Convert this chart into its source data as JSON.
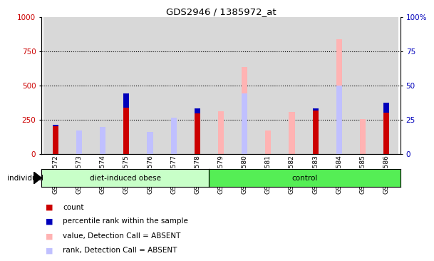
{
  "title": "GDS2946 / 1385972_at",
  "samples": [
    "GSM215572",
    "GSM215573",
    "GSM215574",
    "GSM215575",
    "GSM215576",
    "GSM215577",
    "GSM215578",
    "GSM215579",
    "GSM215580",
    "GSM215581",
    "GSM215582",
    "GSM215583",
    "GSM215584",
    "GSM215585",
    "GSM215586"
  ],
  "count": [
    200,
    0,
    0,
    440,
    0,
    0,
    335,
    0,
    0,
    0,
    0,
    315,
    0,
    0,
    375
  ],
  "percentile_rank": [
    215,
    0,
    0,
    340,
    0,
    0,
    295,
    0,
    0,
    0,
    0,
    330,
    0,
    0,
    300
  ],
  "value_absent": [
    0,
    155,
    185,
    0,
    90,
    250,
    0,
    310,
    635,
    170,
    305,
    0,
    840,
    255,
    0
  ],
  "rank_absent": [
    0,
    170,
    195,
    0,
    160,
    265,
    0,
    0,
    440,
    0,
    0,
    0,
    500,
    0,
    0
  ],
  "n_group1": 7,
  "n_group2": 8,
  "group_label1": "diet-induced obese",
  "group_label2": "control",
  "left_ylim": [
    0,
    1000
  ],
  "right_ylim": [
    0,
    100
  ],
  "left_yticks": [
    0,
    250,
    500,
    750,
    1000
  ],
  "right_yticks": [
    0,
    25,
    50,
    75,
    100
  ],
  "color_count": "#cc0000",
  "color_percentile": "#0000bb",
  "color_value_absent": "#ffb3b3",
  "color_rank_absent": "#c0c0ff",
  "bg_plot": "#ffffff",
  "bg_bar_col": "#d8d8d8",
  "bg_group1": "#c8ffc8",
  "bg_group2": "#55ee55",
  "bar_width": 0.45
}
